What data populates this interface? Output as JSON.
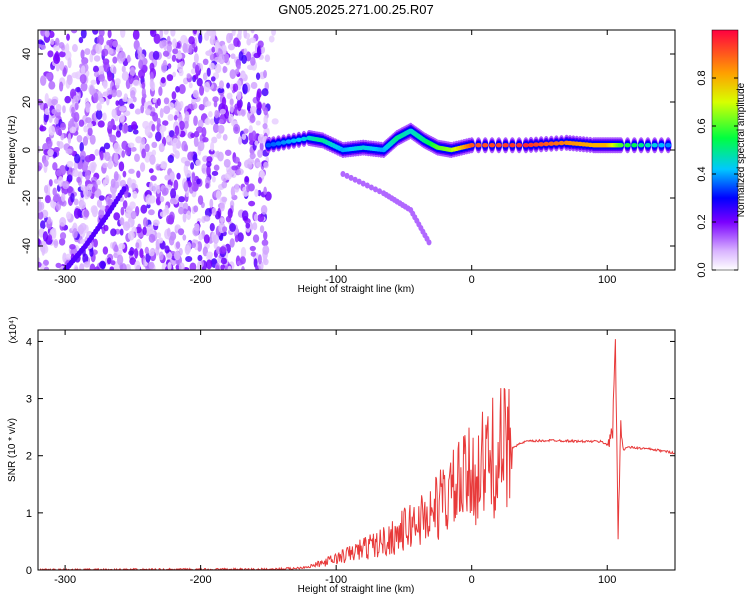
{
  "title": "GN05.2025.271.00.25.R07",
  "chart_data": [
    {
      "type": "heatmap",
      "xlabel": "Height of straight line (km)",
      "ylabel": "Frequency (Hz)",
      "xlim": [
        -320,
        150
      ],
      "ylim": [
        -50,
        50
      ],
      "xticks": [
        -300,
        -200,
        -100,
        0,
        100
      ],
      "yticks": [
        -40,
        -20,
        0,
        20,
        40
      ],
      "colorbar": {
        "label": "Normalized spectral amplitude",
        "range": [
          0,
          1
        ],
        "ticks": [
          "0.0",
          "0.2",
          "0.4",
          "0.6",
          "0.8"
        ]
      },
      "features": [
        {
          "name": "noise-region",
          "x_range": [
            -320,
            -150
          ],
          "f_range": [
            -50,
            50
          ],
          "amplitude": 0.1
        },
        {
          "name": "diagonal-trace",
          "points": [
            [
              -300,
              -50
            ],
            [
              -285,
              -40
            ],
            [
              -270,
              -28
            ],
            [
              -255,
              -15
            ]
          ],
          "amplitude": 0.15
        },
        {
          "name": "faint-curve",
          "points": [
            [
              -95,
              -10
            ],
            [
              -65,
              -18
            ],
            [
              -45,
              -25
            ],
            [
              -30,
              -40
            ]
          ],
          "amplitude": 0.05
        },
        {
          "name": "main-band",
          "points": [
            [
              -150,
              2
            ],
            [
              -120,
              5
            ],
            [
              -110,
              4
            ],
            [
              -95,
              0
            ],
            [
              -80,
              1
            ],
            [
              -65,
              0
            ],
            [
              -55,
              5
            ],
            [
              -45,
              8
            ],
            [
              -35,
              4
            ],
            [
              -25,
              1
            ],
            [
              -15,
              0
            ],
            [
              0,
              2
            ],
            [
              40,
              2
            ],
            [
              70,
              3
            ],
            [
              90,
              2
            ],
            [
              100,
              2
            ],
            [
              110,
              2
            ],
            [
              150,
              2
            ]
          ],
          "amplitude": [
            0.35,
            0.45,
            0.5,
            0.4,
            0.45,
            0.4,
            0.5,
            0.45,
            0.5,
            0.6,
            0.65,
            0.9,
            0.95,
            0.85,
            0.8,
            0.8,
            0.6,
            0.35
          ]
        }
      ]
    },
    {
      "type": "line",
      "xlabel": "Height of straight line (km)",
      "ylabel": "SNR (10 * v/v)",
      "y_multiplier": "(x10⁴)",
      "xlim": [
        -320,
        150
      ],
      "ylim": [
        0,
        4.2
      ],
      "xticks": [
        -300,
        -200,
        -100,
        0,
        100
      ],
      "yticks": [
        0,
        1,
        2,
        3,
        4
      ],
      "series": [
        {
          "name": "SNR",
          "color": "#e83a3a",
          "x": [
            -320,
            -150,
            -130,
            -120,
            -110,
            -100,
            -90,
            -80,
            -70,
            -60,
            -50,
            -40,
            -30,
            -20,
            -10,
            0,
            10,
            20,
            30,
            40,
            60,
            80,
            95,
            100,
            104,
            106,
            108,
            110,
            112,
            115,
            130,
            150
          ],
          "y": [
            0.0,
            0.01,
            0.03,
            0.06,
            0.12,
            0.2,
            0.28,
            0.38,
            0.45,
            0.55,
            0.7,
            0.85,
            1.0,
            1.25,
            1.45,
            1.65,
            1.85,
            2.05,
            2.15,
            2.25,
            2.27,
            2.25,
            2.25,
            2.2,
            2.4,
            4.1,
            0.6,
            2.6,
            2.1,
            2.15,
            2.12,
            2.05
          ]
        }
      ]
    }
  ]
}
